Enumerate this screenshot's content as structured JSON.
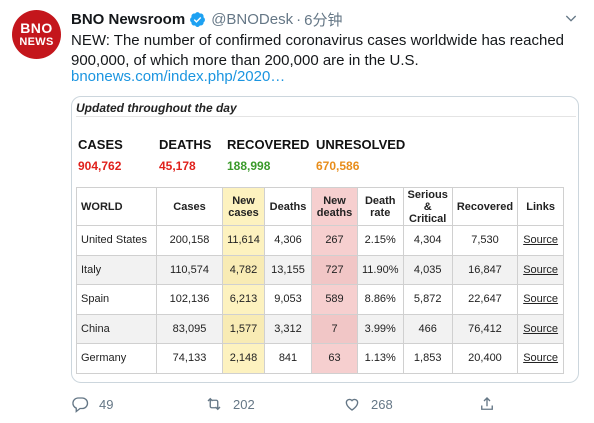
{
  "author": {
    "avatar_line1": "BNO",
    "avatar_line2": "NEWS",
    "name": "BNO Newsroom",
    "handle": "@BNODesk",
    "separator": "·",
    "time": "6分钟"
  },
  "tweet": {
    "text": "NEW: The number of confirmed coronavirus cases worldwide has reached 900,000, of which more than 200,000 are in the U.S.",
    "link": "bnonews.com/index.php/2020…"
  },
  "card": {
    "updated": "Updated throughout the day",
    "stats": [
      {
        "label": "CASES",
        "value": "904,762",
        "color": "#e0201b"
      },
      {
        "label": "DEATHS",
        "value": "45,178",
        "color": "#e0201b"
      },
      {
        "label": "RECOVERED",
        "value": "188,998",
        "color": "#3a9a2a"
      },
      {
        "label": "UNRESOLVED",
        "value": "670,586",
        "color": "#e88d1a"
      }
    ],
    "table": {
      "headers": [
        "WORLD",
        "Cases",
        "New cases",
        "Deaths",
        "New deaths",
        "Death rate",
        "Serious & Critical",
        "Recovered",
        "Links"
      ],
      "rows": [
        [
          "United States",
          "200,158",
          "11,614",
          "4,306",
          "267",
          "2.15%",
          "4,304",
          "7,530",
          "Source"
        ],
        [
          "Italy",
          "110,574",
          "4,782",
          "13,155",
          "727",
          "11.90%",
          "4,035",
          "16,847",
          "Source"
        ],
        [
          "Spain",
          "102,136",
          "6,213",
          "9,053",
          "589",
          "8.86%",
          "5,872",
          "22,647",
          "Source"
        ],
        [
          "China",
          "83,095",
          "1,577",
          "3,312",
          "7",
          "3.99%",
          "466",
          "76,412",
          "Source"
        ],
        [
          "Germany",
          "74,133",
          "2,148",
          "841",
          "63",
          "1.13%",
          "1,853",
          "20,400",
          "Source"
        ]
      ]
    }
  },
  "actions": {
    "reply_count": "49",
    "retweet_count": "202",
    "like_count": "268"
  },
  "colors": {
    "verified": "#1da1f2",
    "link": "#1b95e0",
    "muted": "#657786",
    "brand": "#c4161c"
  },
  "icons": [
    "verified-badge-icon",
    "chevron-down-icon",
    "reply-icon",
    "retweet-icon",
    "like-icon",
    "share-icon"
  ]
}
